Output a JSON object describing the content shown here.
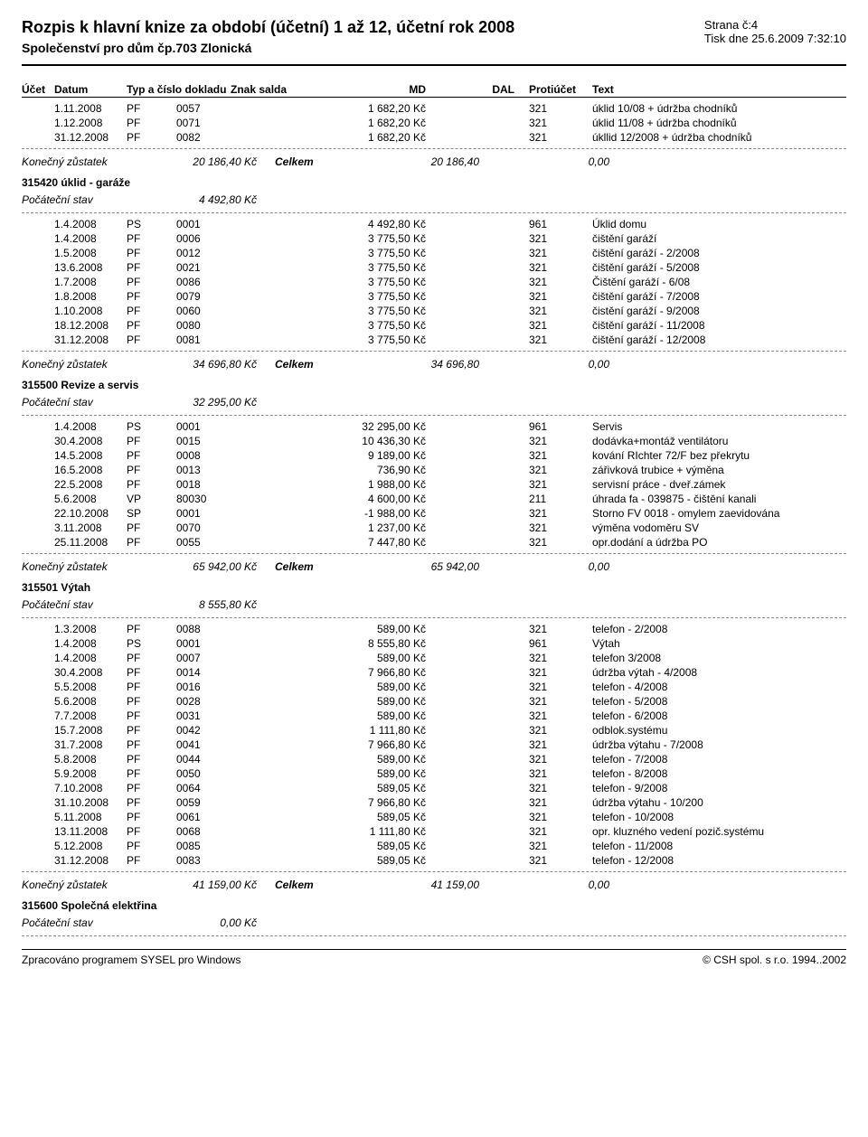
{
  "header": {
    "title": "Rozpis k hlavní knize za období (účetní) 1 až 12, účetní rok 2008",
    "subtitle": "Společenství pro dům čp.703 Zlonická",
    "page": "Strana č:4",
    "printed": "Tisk dne  25.6.2009 7:32:10"
  },
  "columns": {
    "ucet": "Účet",
    "datum": "Datum",
    "typ": "Typ a číslo dokladu",
    "znak": "Znak salda",
    "md": "MD",
    "dal": "DAL",
    "prot": "Protiúčet",
    "text": "Text"
  },
  "labels": {
    "konecny": "Konečný zůstatek",
    "pocatecni": "Počáteční stav",
    "celkem": "Celkem"
  },
  "sections": [
    {
      "opening_rows": [
        {
          "datum": "1.11.2008",
          "typ": "PF",
          "doklad": "0057",
          "md": "1 682,20 Kč",
          "prot": "321",
          "text": "úklid 10/08 + údržba chodníků"
        },
        {
          "datum": "1.12.2008",
          "typ": "PF",
          "doklad": "0071",
          "md": "1 682,20 Kč",
          "prot": "321",
          "text": "úklid 11/08 + údržba chodníků"
        },
        {
          "datum": "31.12.2008",
          "typ": "PF",
          "doklad": "0082",
          "md": "1 682,20 Kč",
          "prot": "321",
          "text": "úkllid 12/2008 + údržba chodníků"
        }
      ],
      "closing": {
        "val1": "20 186,40 Kč",
        "val2": "20 186,40",
        "val3": "0,00"
      }
    },
    {
      "title": "315420 úklid - garáže",
      "opening": "4 492,80 Kč",
      "rows": [
        {
          "datum": "1.4.2008",
          "typ": "PS",
          "doklad": "0001",
          "md": "4 492,80 Kč",
          "prot": "961",
          "text": "Úklid domu"
        },
        {
          "datum": "1.4.2008",
          "typ": "PF",
          "doklad": "0006",
          "md": "3 775,50 Kč",
          "prot": "321",
          "text": "čištění garáží"
        },
        {
          "datum": "1.5.2008",
          "typ": "PF",
          "doklad": "0012",
          "md": "3 775,50 Kč",
          "prot": "321",
          "text": "čištění garáží - 2/2008"
        },
        {
          "datum": "13.6.2008",
          "typ": "PF",
          "doklad": "0021",
          "md": "3 775,50 Kč",
          "prot": "321",
          "text": "čištění garáží - 5/2008"
        },
        {
          "datum": "1.7.2008",
          "typ": "PF",
          "doklad": "0086",
          "md": "3 775,50 Kč",
          "prot": "321",
          "text": "Čištění garáží - 6/08"
        },
        {
          "datum": "1.8.2008",
          "typ": "PF",
          "doklad": "0079",
          "md": "3 775,50 Kč",
          "prot": "321",
          "text": "čištění garáží - 7/2008"
        },
        {
          "datum": "1.10.2008",
          "typ": "PF",
          "doklad": "0060",
          "md": "3 775,50 Kč",
          "prot": "321",
          "text": "čistění garáží - 9/2008"
        },
        {
          "datum": "18.12.2008",
          "typ": "PF",
          "doklad": "0080",
          "md": "3 775,50 Kč",
          "prot": "321",
          "text": "čištění garáží - 11/2008"
        },
        {
          "datum": "31.12.2008",
          "typ": "PF",
          "doklad": "0081",
          "md": "3 775,50 Kč",
          "prot": "321",
          "text": "čištění garáží - 12/2008"
        }
      ],
      "closing": {
        "val1": "34 696,80 Kč",
        "val2": "34 696,80",
        "val3": "0,00"
      }
    },
    {
      "title": "315500 Revize a servis",
      "opening": "32 295,00 Kč",
      "rows": [
        {
          "datum": "1.4.2008",
          "typ": "PS",
          "doklad": "0001",
          "md": "32 295,00 Kč",
          "prot": "961",
          "text": "Servis"
        },
        {
          "datum": "30.4.2008",
          "typ": "PF",
          "doklad": "0015",
          "md": "10 436,30 Kč",
          "prot": "321",
          "text": "dodávka+montáž ventilátoru"
        },
        {
          "datum": "14.5.2008",
          "typ": "PF",
          "doklad": "0008",
          "md": "9 189,00 Kč",
          "prot": "321",
          "text": "kování RIchter 72/F bez překrytu"
        },
        {
          "datum": "16.5.2008",
          "typ": "PF",
          "doklad": "0013",
          "md": "736,90 Kč",
          "prot": "321",
          "text": "zářivková trubice + výměna"
        },
        {
          "datum": "22.5.2008",
          "typ": "PF",
          "doklad": "0018",
          "md": "1 988,00 Kč",
          "prot": "321",
          "text": "servisní práce - dveř.zámek"
        },
        {
          "datum": "5.6.2008",
          "typ": "VP",
          "doklad": "80030",
          "md": "4 600,00 Kč",
          "prot": "211",
          "text": "úhrada fa - 039875 - čištění kanali"
        },
        {
          "datum": "22.10.2008",
          "typ": "SP",
          "doklad": "0001",
          "md": "-1 988,00 Kč",
          "prot": "321",
          "text": "Storno FV 0018 - omylem zaevidována"
        },
        {
          "datum": "3.11.2008",
          "typ": "PF",
          "doklad": "0070",
          "md": "1 237,00 Kč",
          "prot": "321",
          "text": "výměna vodoměru SV"
        },
        {
          "datum": "25.11.2008",
          "typ": "PF",
          "doklad": "0055",
          "md": "7 447,80 Kč",
          "prot": "321",
          "text": "opr.dodání a údržba PO"
        }
      ],
      "closing": {
        "val1": "65 942,00 Kč",
        "val2": "65 942,00",
        "val3": "0,00"
      }
    },
    {
      "title": "315501 Výtah",
      "opening": "8 555,80 Kč",
      "rows": [
        {
          "datum": "1.3.2008",
          "typ": "PF",
          "doklad": "0088",
          "md": "589,00 Kč",
          "prot": "321",
          "text": "telefon - 2/2008"
        },
        {
          "datum": "1.4.2008",
          "typ": "PS",
          "doklad": "0001",
          "md": "8 555,80 Kč",
          "prot": "961",
          "text": "Výtah"
        },
        {
          "datum": "1.4.2008",
          "typ": "PF",
          "doklad": "0007",
          "md": "589,00 Kč",
          "prot": "321",
          "text": "telefon 3/2008"
        },
        {
          "datum": "30.4.2008",
          "typ": "PF",
          "doklad": "0014",
          "md": "7 966,80 Kč",
          "prot": "321",
          "text": "údržba výtah - 4/2008"
        },
        {
          "datum": "5.5.2008",
          "typ": "PF",
          "doklad": "0016",
          "md": "589,00 Kč",
          "prot": "321",
          "text": "telefon - 4/2008"
        },
        {
          "datum": "5.6.2008",
          "typ": "PF",
          "doklad": "0028",
          "md": "589,00 Kč",
          "prot": "321",
          "text": "telefon - 5/2008"
        },
        {
          "datum": "7.7.2008",
          "typ": "PF",
          "doklad": "0031",
          "md": "589,00 Kč",
          "prot": "321",
          "text": "telefon - 6/2008"
        },
        {
          "datum": "15.7.2008",
          "typ": "PF",
          "doklad": "0042",
          "md": "1 111,80 Kč",
          "prot": "321",
          "text": "odblok.systému"
        },
        {
          "datum": "31.7.2008",
          "typ": "PF",
          "doklad": "0041",
          "md": "7 966,80 Kč",
          "prot": "321",
          "text": "údržba výtahu - 7/2008"
        },
        {
          "datum": "5.8.2008",
          "typ": "PF",
          "doklad": "0044",
          "md": "589,00 Kč",
          "prot": "321",
          "text": "telefon - 7/2008"
        },
        {
          "datum": "5.9.2008",
          "typ": "PF",
          "doklad": "0050",
          "md": "589,00 Kč",
          "prot": "321",
          "text": "telefon - 8/2008"
        },
        {
          "datum": "7.10.2008",
          "typ": "PF",
          "doklad": "0064",
          "md": "589,05 Kč",
          "prot": "321",
          "text": "telefon - 9/2008"
        },
        {
          "datum": "31.10.2008",
          "typ": "PF",
          "doklad": "0059",
          "md": "7 966,80 Kč",
          "prot": "321",
          "text": "údržba výtahu - 10/200"
        },
        {
          "datum": "5.11.2008",
          "typ": "PF",
          "doklad": "0061",
          "md": "589,05 Kč",
          "prot": "321",
          "text": "telefon - 10/2008"
        },
        {
          "datum": "13.11.2008",
          "typ": "PF",
          "doklad": "0068",
          "md": "1 111,80 Kč",
          "prot": "321",
          "text": "opr. kluzného vedení pozič.systému"
        },
        {
          "datum": "5.12.2008",
          "typ": "PF",
          "doklad": "0085",
          "md": "589,05 Kč",
          "prot": "321",
          "text": "telefon - 11/2008"
        },
        {
          "datum": "31.12.2008",
          "typ": "PF",
          "doklad": "0083",
          "md": "589,05 Kč",
          "prot": "321",
          "text": "telefon - 12/2008"
        }
      ],
      "closing": {
        "val1": "41 159,00 Kč",
        "val2": "41 159,00",
        "val3": "0,00"
      }
    },
    {
      "title": "315600 Společná elektřina",
      "opening": "0,00 Kč"
    }
  ],
  "footer": {
    "left": "Zpracováno programem SYSEL pro Windows",
    "right": "© CSH spol. s r.o. 1994..2002"
  }
}
